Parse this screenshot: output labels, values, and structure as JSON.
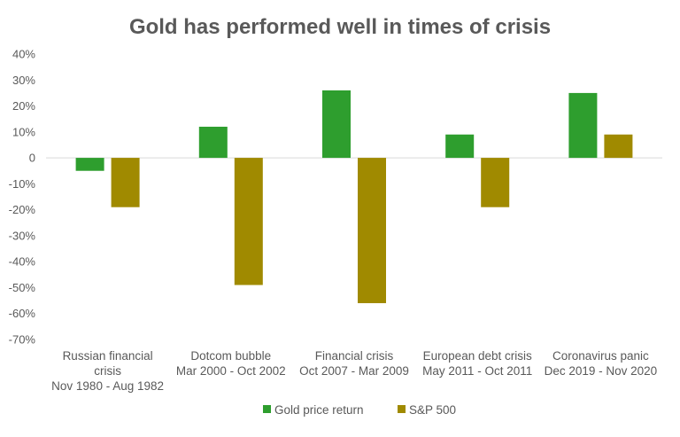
{
  "chart_data": {
    "type": "bar",
    "title": "Gold has performed well in times of crisis",
    "xlabel": "",
    "ylabel": "",
    "ylim": [
      -70,
      40
    ],
    "yticks": [
      40,
      30,
      20,
      10,
      0,
      -10,
      -20,
      -30,
      -40,
      -50,
      -60,
      -70
    ],
    "ytick_labels": [
      "40%",
      "30%",
      "20%",
      "10%",
      "0",
      "-10%",
      "-20%",
      "-30%",
      "-40%",
      "-50%",
      "-60%",
      "-70%"
    ],
    "grid": "zero-line only",
    "legend_position": "bottom",
    "categories": [
      [
        "Russian financial",
        "crisis",
        "Nov 1980 - Aug 1982"
      ],
      [
        "Dotcom bubble",
        "Mar 2000 - Oct 2002"
      ],
      [
        "Financial crisis",
        "Oct 2007 - Mar 2009"
      ],
      [
        "European debt crisis",
        "May 2011 - Oct 2011"
      ],
      [
        "Coronavirus panic",
        "Dec 2019 - Nov 2020"
      ]
    ],
    "series": [
      {
        "name": "Gold price return",
        "color": "#2e9e2e",
        "values": [
          -5,
          12,
          26,
          9,
          25
        ]
      },
      {
        "name": "S&P 500",
        "color": "#a08a00",
        "values": [
          -19,
          -49,
          -56,
          -19,
          9
        ]
      }
    ]
  }
}
